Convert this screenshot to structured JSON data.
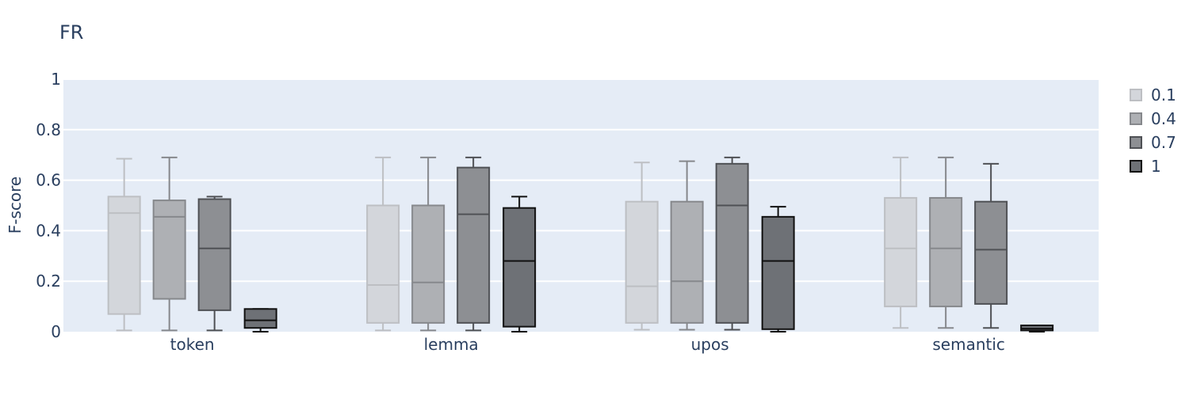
{
  "chart_data": {
    "type": "box",
    "title": "FR",
    "xlabel": "",
    "ylabel": "F-score",
    "ylim": [
      0,
      1
    ],
    "yticks": [
      "0",
      "0.2",
      "0.4",
      "0.6",
      "0.8",
      "1"
    ],
    "ytick_values": [
      0,
      0.2,
      0.4,
      0.6,
      0.8,
      1
    ],
    "grid": true,
    "legend_position": "top-right",
    "categories": [
      "token",
      "lemma",
      "upos",
      "semantic"
    ],
    "series": [
      {
        "name": "0.1",
        "fill": "#d3d6db",
        "stroke": "#bdbfc3",
        "boxes": [
          {
            "min": 0.005,
            "q1": 0.07,
            "median": 0.47,
            "q3": 0.535,
            "max": 0.685
          },
          {
            "min": 0.005,
            "q1": 0.035,
            "median": 0.185,
            "q3": 0.5,
            "max": 0.69
          },
          {
            "min": 0.008,
            "q1": 0.035,
            "median": 0.18,
            "q3": 0.515,
            "max": 0.67
          },
          {
            "min": 0.015,
            "q1": 0.1,
            "median": 0.33,
            "q3": 0.53,
            "max": 0.69
          }
        ]
      },
      {
        "name": "0.4",
        "fill": "#aeb0b4",
        "stroke": "#86888c",
        "boxes": [
          {
            "min": 0.005,
            "q1": 0.13,
            "median": 0.455,
            "q3": 0.52,
            "max": 0.69
          },
          {
            "min": 0.005,
            "q1": 0.035,
            "median": 0.195,
            "q3": 0.5,
            "max": 0.69
          },
          {
            "min": 0.008,
            "q1": 0.035,
            "median": 0.2,
            "q3": 0.515,
            "max": 0.675
          },
          {
            "min": 0.015,
            "q1": 0.1,
            "median": 0.33,
            "q3": 0.53,
            "max": 0.69
          }
        ]
      },
      {
        "name": "0.7",
        "fill": "#8d8f93",
        "stroke": "#4f5155",
        "boxes": [
          {
            "min": 0.005,
            "q1": 0.085,
            "median": 0.33,
            "q3": 0.525,
            "max": 0.535
          },
          {
            "min": 0.005,
            "q1": 0.035,
            "median": 0.465,
            "q3": 0.65,
            "max": 0.69
          },
          {
            "min": 0.008,
            "q1": 0.035,
            "median": 0.5,
            "q3": 0.665,
            "max": 0.69
          },
          {
            "min": 0.015,
            "q1": 0.11,
            "median": 0.325,
            "q3": 0.515,
            "max": 0.665
          }
        ]
      },
      {
        "name": "1",
        "fill": "#6e7176",
        "stroke": "#111111",
        "boxes": [
          {
            "min": 0.0,
            "q1": 0.015,
            "median": 0.045,
            "q3": 0.09,
            "max": 0.09
          },
          {
            "min": 0.0,
            "q1": 0.02,
            "median": 0.28,
            "q3": 0.49,
            "max": 0.535
          },
          {
            "min": 0.0,
            "q1": 0.01,
            "median": 0.28,
            "q3": 0.455,
            "max": 0.495
          },
          {
            "min": 0.0,
            "q1": 0.005,
            "median": 0.012,
            "q3": 0.025,
            "max": 0.025
          }
        ]
      }
    ]
  }
}
